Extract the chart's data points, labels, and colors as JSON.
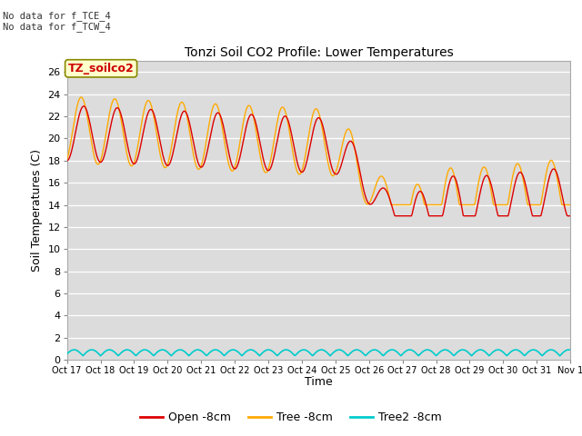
{
  "title": "Tonzi Soil CO2 Profile: Lower Temperatures",
  "ylabel": "Soil Temperatures (C)",
  "xlabel": "Time",
  "bg_color": "#dcdcdc",
  "fig_bg": "#ffffff",
  "annotation1": "No data for f_TCE_4",
  "annotation2": "No data for f_TCW_4",
  "watermark": "TZ_soilco2",
  "xtick_labels": [
    "Oct 17",
    "Oct 18",
    "Oct 19",
    "Oct 20",
    "Oct 21",
    "Oct 22",
    "Oct 23",
    "Oct 24",
    "Oct 25",
    "Oct 26",
    "Oct 27",
    "Oct 28",
    "Oct 29",
    "Oct 30",
    "Oct 31",
    "Nov 1"
  ],
  "ylim": [
    0,
    27
  ],
  "yticks": [
    0,
    2,
    4,
    6,
    8,
    10,
    12,
    14,
    16,
    18,
    20,
    22,
    24,
    26
  ],
  "open_color": "#dd0000",
  "tree_color": "#ffaa00",
  "tree2_color": "#00cccc",
  "legend_labels": [
    "Open -8cm",
    "Tree -8cm",
    "Tree2 -8cm"
  ]
}
